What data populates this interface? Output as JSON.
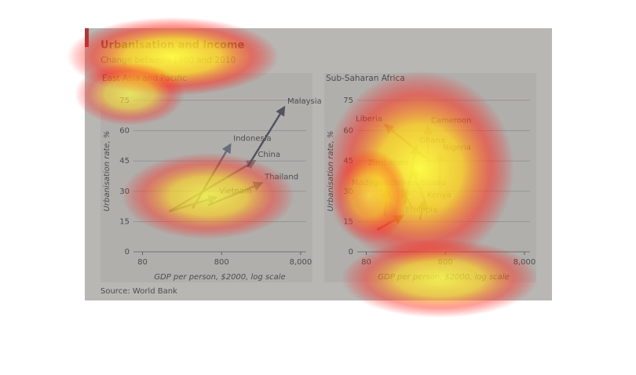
{
  "title": "Urbanisation and income",
  "subtitle": "Change between 1990 and 2010",
  "source": "Source: World Bank",
  "chart_data": [
    {
      "type": "arrow",
      "title": "East Asia and Pacific",
      "ylabel": "Urbanisation rate, %",
      "xlabel": "GDP per person, $2000, log scale",
      "xlim": [
        31,
        9400
      ],
      "xticks": [
        80,
        800,
        {
          "value": 8000,
          "label": "8,000"
        }
      ],
      "xscale": "log",
      "ylim": [
        0,
        80
      ],
      "yticks": [
        0,
        15,
        30,
        45,
        60,
        75
      ],
      "grid": true,
      "series": [
        {
          "name": "China",
          "color": "#6e6e6e",
          "x": [
            174,
            2100
          ],
          "values": [
            20,
            45
          ]
        },
        {
          "name": "Indonesia",
          "color": "#55606e",
          "x": [
            343,
            1030
          ],
          "values": [
            21.5,
            53
          ]
        },
        {
          "name": "Malaysia",
          "color": "#2a2f45",
          "x": [
            1700,
            4950
          ],
          "values": [
            42,
            71.5
          ]
        },
        {
          "name": "Thailand",
          "color": "#5a6473",
          "x": [
            540,
            2560
          ],
          "values": [
            23,
            34
          ]
        },
        {
          "name": "Vietnam",
          "color": "#6f7c72",
          "x": [
            174,
            680
          ],
          "values": [
            20,
            27
          ]
        }
      ]
    },
    {
      "type": "arrow",
      "title": "Sub-Saharan Africa",
      "ylabel": "Urbanisation rate, %",
      "xlabel": "GDP per person, $2000, log scale",
      "xlim": [
        31,
        9400
      ],
      "xticks": [
        80,
        800,
        {
          "value": 8000,
          "label": "8,000"
        }
      ],
      "xscale": "log",
      "ylim": [
        0,
        80
      ],
      "yticks": [
        0,
        15,
        30,
        45,
        60,
        75
      ],
      "grid": true,
      "series": [
        {
          "name": "Liberia",
          "color": "#c0503c",
          "x": [
            520,
            140
          ],
          "values": [
            44.6,
            62.7
          ]
        },
        {
          "name": "Cameroon",
          "color": "#b89a70",
          "x": [
            480,
            480
          ],
          "values": [
            42.7,
            62
          ]
        },
        {
          "name": "Nigeria",
          "color": "#b0a070",
          "x": [
            680,
            680
          ],
          "values": [
            31,
            48.5
          ]
        },
        {
          "name": "Ghana",
          "color": "#8a7a40",
          "x": [
            244,
            343
          ],
          "values": [
            23.5,
            52
          ]
        },
        {
          "name": "Madagascar",
          "color": "#8a7a50",
          "x": [
            305,
            230
          ],
          "values": [
            21.5,
            31
          ]
        },
        {
          "name": "Guinea Bissau",
          "color": "#c08060",
          "x": [
            138,
            145
          ],
          "values": [
            17.7,
            31
          ]
        },
        {
          "name": "Zimbabwe",
          "color": "#a08a50",
          "x": [
            480,
            305
          ],
          "values": [
            21.5,
            41
          ]
        },
        {
          "name": "Kenya",
          "color": "#907040",
          "x": [
            380,
            430
          ],
          "values": [
            15.8,
            25
          ]
        },
        {
          "name": "Ethiopia",
          "color": "#d04010",
          "x": [
            110,
            228
          ],
          "values": [
            11,
            17.7
          ]
        }
      ]
    }
  ]
}
